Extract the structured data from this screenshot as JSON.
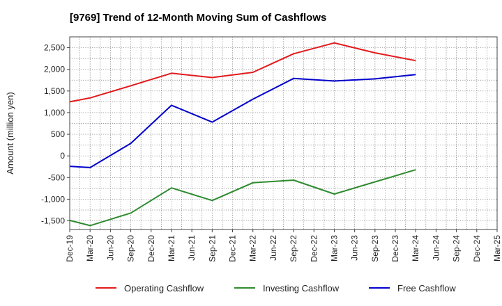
{
  "chart_data": {
    "type": "line",
    "title": "[9769]  Trend of 12-Month Moving Sum of Cashflows",
    "xlabel": "",
    "ylabel": "Amount (million yen)",
    "ylim": [
      -1700,
      2750
    ],
    "yticks": [
      -1500,
      -1000,
      -500,
      0,
      500,
      1000,
      1500,
      2000,
      2500
    ],
    "ytick_labels": [
      "-1,500",
      "-1,000",
      "-500",
      "0",
      "500",
      "1,000",
      "1,500",
      "2,000",
      "2,500"
    ],
    "categories": [
      "Dec-19",
      "Mar-20",
      "Jun-20",
      "Sep-20",
      "Dec-20",
      "Mar-21",
      "Jun-21",
      "Sep-21",
      "Dec-21",
      "Mar-22",
      "Jun-22",
      "Sep-22",
      "Dec-22",
      "Mar-23",
      "Jun-23",
      "Sep-23",
      "Dec-23",
      "Mar-24",
      "Jun-24",
      "Sep-24",
      "Dec-24",
      "Mar-25"
    ],
    "grid": true,
    "legend_position": "bottom",
    "series": [
      {
        "name": "Operating Cashflow",
        "color": "#e31a1c",
        "values": [
          1250,
          1340,
          null,
          1620,
          null,
          1910,
          null,
          1810,
          null,
          1930,
          null,
          2360,
          null,
          2610,
          null,
          2380,
          null,
          2200,
          null,
          null,
          null,
          null
        ]
      },
      {
        "name": "Investing Cashflow",
        "color": "#2e8b2e",
        "values": [
          -1490,
          -1610,
          null,
          -1320,
          null,
          -740,
          null,
          -1030,
          null,
          -620,
          null,
          -560,
          null,
          -880,
          null,
          -600,
          null,
          -320,
          null,
          null,
          null,
          null
        ]
      },
      {
        "name": "Free Cashflow",
        "color": "#0000cc",
        "values": [
          -240,
          -270,
          null,
          290,
          null,
          1170,
          null,
          780,
          null,
          1310,
          null,
          1790,
          null,
          1730,
          null,
          1780,
          null,
          1880,
          null,
          null,
          null,
          null
        ]
      }
    ]
  }
}
